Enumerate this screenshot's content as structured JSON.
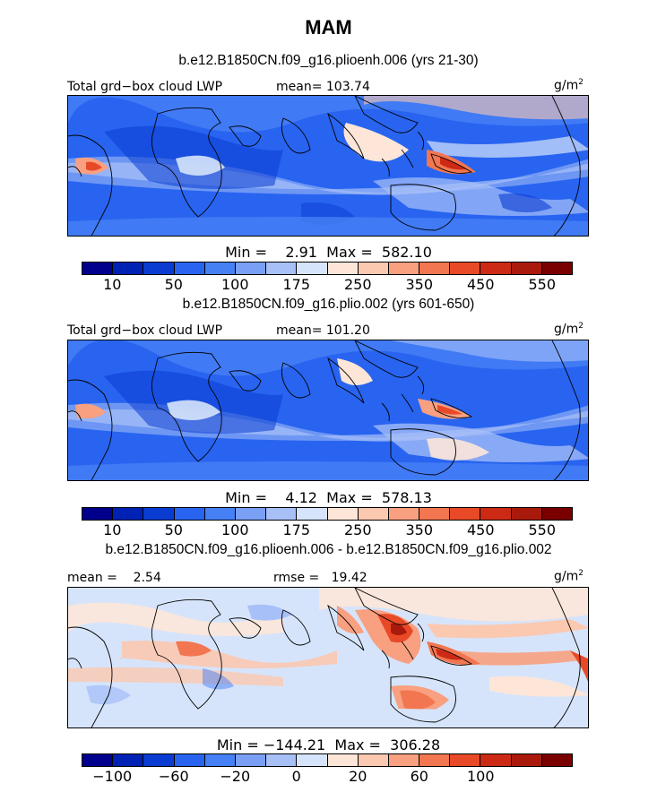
{
  "figure": {
    "title": "MAM",
    "units_label": "g/m",
    "units_superscript": "2"
  },
  "colors": {
    "absolute_scale": [
      "#00008c",
      "#0022b4",
      "#0a3cd2",
      "#2864f0",
      "#4680f5",
      "#7aa0f5",
      "#a8c0f8",
      "#d6e4fb",
      "#fde6d8",
      "#fbc8b0",
      "#f8a080",
      "#f27650",
      "#e84a28",
      "#cc2a14",
      "#aa1a0c",
      "#7a0000"
    ],
    "difference_scale": [
      "#00008c",
      "#0022b4",
      "#0a3cd2",
      "#2864f0",
      "#4680f5",
      "#7aa0f5",
      "#a8c0f8",
      "#d6e4fb",
      "#fde6d8",
      "#fbc8b0",
      "#f8a080",
      "#f27650",
      "#e84a28",
      "#cc2a14",
      "#aa1a0c",
      "#7a0000"
    ]
  },
  "panels": [
    {
      "case": "b.e12.B1850CN.f09_g16.plioenh.006 (yrs 21-30)",
      "left_label": "Total grd−box cloud LWP",
      "stat_label": "mean= 103.74",
      "minmax": "Min =    2.91  Max =  582.10",
      "ticks": [
        "10",
        "50",
        "100",
        "175",
        "250",
        "350",
        "450",
        "550"
      ]
    },
    {
      "case": "b.e12.B1850CN.f09_g16.plio.002 (yrs 601-650)",
      "left_label": "Total grd−box cloud LWP",
      "stat_label": "mean= 101.20",
      "minmax": "Min =    4.12  Max =  578.13",
      "ticks": [
        "10",
        "50",
        "100",
        "175",
        "250",
        "350",
        "450",
        "550"
      ]
    },
    {
      "case": "b.e12.B1850CN.f09_g16.plioenh.006 - b.e12.B1850CN.f09_g16.plio.002",
      "left_label": "mean =    2.54",
      "stat_label": "rmse =   19.42",
      "minmax": "Min = −144.21  Max =  306.28",
      "ticks": [
        "−100",
        "−60",
        "−20",
        "0",
        "20",
        "60",
        "100"
      ]
    }
  ],
  "chart_data": [
    {
      "type": "heatmap",
      "title": "b.e12.B1850CN.f09_g16.plioenh.006 (yrs 21-30)",
      "variable": "Total grd−box cloud LWP",
      "units": "g/m^2",
      "mean": 103.74,
      "min": 2.91,
      "max": 582.1,
      "contour_levels": [
        10,
        25,
        50,
        75,
        100,
        125,
        150,
        175,
        200,
        250,
        300,
        350,
        400,
        450,
        500,
        550
      ],
      "colorbar_labels": [
        10,
        50,
        100,
        175,
        250,
        350,
        450,
        550
      ]
    },
    {
      "type": "heatmap",
      "title": "b.e12.B1850CN.f09_g16.plio.002 (yrs 601-650)",
      "variable": "Total grd−box cloud LWP",
      "units": "g/m^2",
      "mean": 101.2,
      "min": 4.12,
      "max": 578.13,
      "contour_levels": [
        10,
        25,
        50,
        75,
        100,
        125,
        150,
        175,
        200,
        250,
        300,
        350,
        400,
        450,
        500,
        550
      ],
      "colorbar_labels": [
        10,
        50,
        100,
        175,
        250,
        350,
        450,
        550
      ]
    },
    {
      "type": "heatmap",
      "title": "b.e12.B1850CN.f09_g16.plioenh.006 - b.e12.B1850CN.f09_g16.plio.002",
      "units": "g/m^2",
      "mean": 2.54,
      "rmse": 19.42,
      "min": -144.21,
      "max": 306.28,
      "colorbar_labels": [
        -100,
        -60,
        -20,
        0,
        20,
        60,
        100
      ]
    }
  ]
}
